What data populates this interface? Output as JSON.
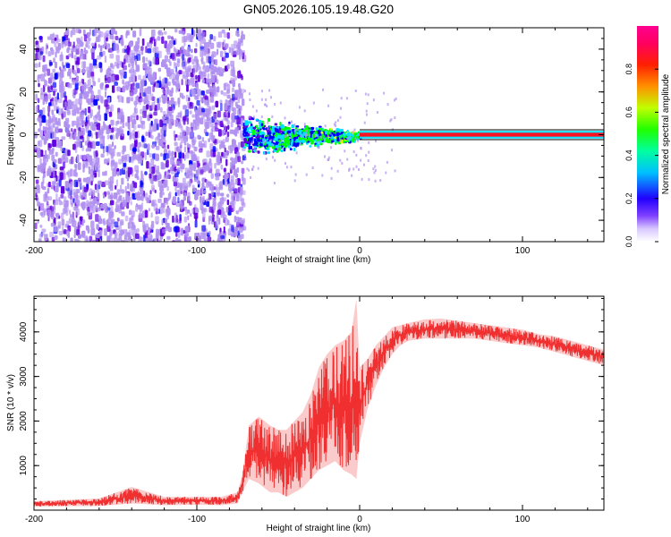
{
  "title": "GN05.2026.105.19.48.G20",
  "chart_data": [
    {
      "type": "heatmap",
      "name": "spectrogram",
      "xlabel": "Height of straight line (km)",
      "ylabel": "Frequency (Hz)",
      "xlim": [
        -200,
        150
      ],
      "ylim": [
        -50,
        50
      ],
      "xticks": [
        -200,
        -100,
        0,
        100
      ],
      "yticks": [
        -40,
        -20,
        0,
        20,
        40
      ],
      "xtick_labels": [
        "-200",
        "-100",
        "0",
        "100"
      ],
      "ytick_labels": [
        "-40",
        "-20",
        "0",
        "20",
        "40"
      ],
      "colorbar": {
        "label": "Normalized spectral amplitude",
        "range": [
          0,
          1
        ],
        "ticks": [
          0.0,
          0.2,
          0.4,
          0.6,
          0.8
        ],
        "tick_labels": [
          "0.0",
          "0.2",
          "0.4",
          "0.6",
          "0.8"
        ],
        "colors": [
          "#ffffff",
          "#b090f0",
          "#6000e0",
          "#0000ff",
          "#00e0ff",
          "#00ff00",
          "#ffff00",
          "#ff0000",
          "#ff00a0"
        ]
      },
      "regions": [
        {
          "x_range": [
            -200,
            -72
          ],
          "freq_range": [
            -50,
            50
          ],
          "amplitude": "0.0-0.2 noise"
        },
        {
          "x_range": [
            -72,
            0
          ],
          "freq_range": [
            -8,
            8
          ],
          "amplitude": "0.2-0.6 spread narrowing toward 0 Hz"
        },
        {
          "x_range": [
            0,
            150
          ],
          "freq_range": [
            0,
            0
          ],
          "amplitude": "0.8-1.0 line at 0 Hz"
        }
      ]
    },
    {
      "type": "line",
      "name": "snr",
      "xlabel": "Height of straight line (km)",
      "ylabel": "SNR (10 * v/v)",
      "xlim": [
        -200,
        150
      ],
      "ylim": [
        0,
        4800
      ],
      "xticks": [
        -200,
        -100,
        0,
        100
      ],
      "yticks": [
        1000,
        2000,
        3000,
        4000
      ],
      "xtick_labels": [
        "-200",
        "-100",
        "0",
        "100"
      ],
      "ytick_labels": [
        "1000",
        "2000",
        "3000",
        "4000"
      ],
      "color": "#f03030",
      "series": [
        {
          "name": "SNR envelope",
          "x": [
            -200,
            -180,
            -160,
            -140,
            -120,
            -100,
            -85,
            -75,
            -72,
            -68,
            -62,
            -55,
            -50,
            -45,
            -40,
            -35,
            -30,
            -25,
            -20,
            -15,
            -10,
            -5,
            -2,
            0,
            5,
            10,
            15,
            20,
            25,
            30,
            40,
            50,
            60,
            70,
            80,
            90,
            100,
            110,
            120,
            130,
            140,
            150
          ],
          "lower": [
            80,
            90,
            90,
            150,
            110,
            120,
            110,
            150,
            400,
            700,
            600,
            400,
            400,
            300,
            400,
            500,
            700,
            900,
            1000,
            1100,
            900,
            800,
            700,
            1500,
            2300,
            2800,
            3200,
            3500,
            3700,
            3800,
            3850,
            3850,
            3850,
            3850,
            3800,
            3750,
            3700,
            3650,
            3550,
            3450,
            3350,
            3250
          ],
          "upper": [
            200,
            230,
            260,
            520,
            300,
            300,
            300,
            400,
            800,
            1900,
            2100,
            1900,
            1800,
            1800,
            2000,
            2200,
            2600,
            3200,
            3500,
            3700,
            3800,
            4000,
            4750,
            3200,
            3400,
            3700,
            3900,
            4100,
            4150,
            4200,
            4280,
            4300,
            4250,
            4200,
            4150,
            4100,
            4050,
            3950,
            3900,
            3800,
            3700,
            3600
          ]
        }
      ]
    }
  ]
}
